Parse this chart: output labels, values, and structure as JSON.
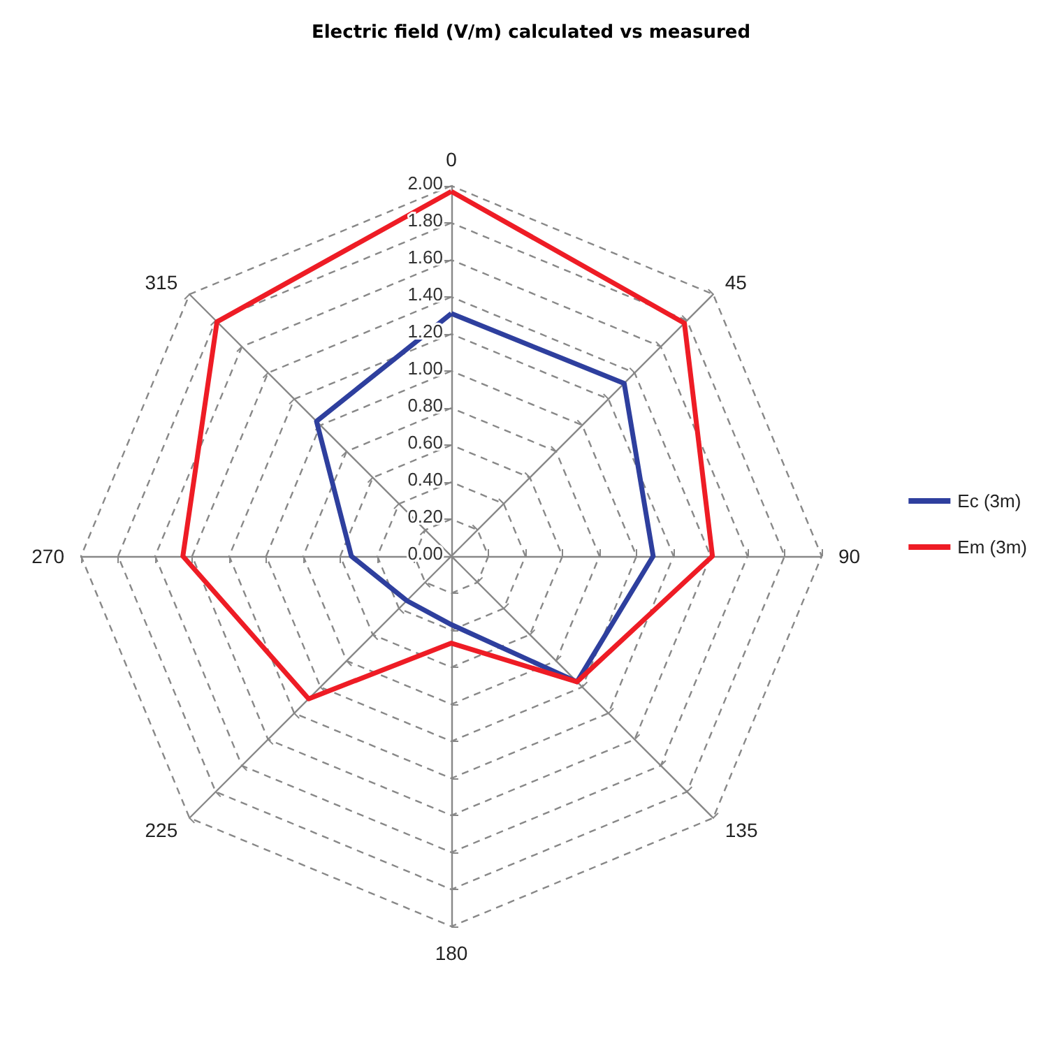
{
  "chart_data": {
    "type": "radar",
    "title": "Electric field (V/m) calculated vs measured",
    "categories": [
      "0",
      "45",
      "90",
      "135",
      "180",
      "225",
      "270",
      "315"
    ],
    "series": [
      {
        "name": "Ec (3m)",
        "color": "#2e3f9e",
        "values": [
          1.31,
          1.32,
          1.09,
          0.96,
          0.37,
          0.34,
          0.54,
          1.03
        ]
      },
      {
        "name": "Em (3m)",
        "color": "#ee1c25",
        "values": [
          1.97,
          1.78,
          1.41,
          0.96,
          0.47,
          1.09,
          1.45,
          1.79
        ]
      }
    ],
    "ylim": [
      0,
      2
    ],
    "yticks": [
      {
        "value": 0,
        "label": "0.00"
      },
      {
        "value": 0.2,
        "label": "0.20"
      },
      {
        "value": 0.4,
        "label": "0.40"
      },
      {
        "value": 0.6,
        "label": "0.60"
      },
      {
        "value": 0.8,
        "label": "0.80"
      },
      {
        "value": 1,
        "label": "1.00"
      },
      {
        "value": 1.2,
        "label": "1.20"
      },
      {
        "value": 1.4,
        "label": "1.40"
      },
      {
        "value": 1.6,
        "label": "1.60"
      },
      {
        "value": 1.8,
        "label": "1.80"
      },
      {
        "value": 2,
        "label": "2.00"
      }
    ],
    "legend": "right",
    "marker": "none",
    "line_style": "solid",
    "grid": true
  }
}
